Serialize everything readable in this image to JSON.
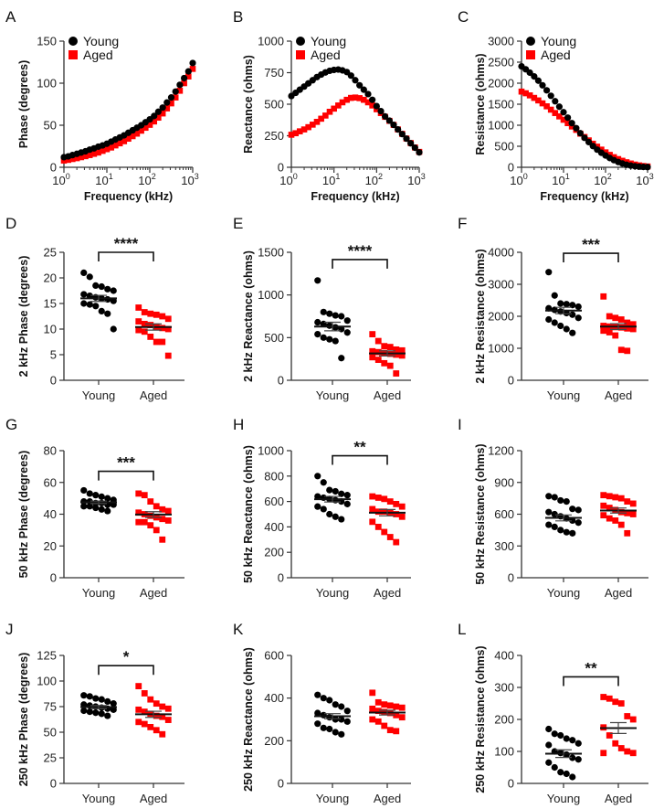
{
  "colors": {
    "young": "#000000",
    "aged": "#ff0000"
  },
  "chart_data": [
    {
      "label": "A",
      "type": "line",
      "xscale": "log",
      "xlabel": "Frequency (kHz)",
      "ylabel": "Phase (degrees)",
      "xlim": [
        1,
        1000
      ],
      "ylim": [
        0,
        150
      ],
      "yticks": [
        "0",
        "50",
        "100",
        "150"
      ],
      "xticks": [
        {
          "base": "10",
          "exp": "0"
        },
        {
          "base": "10",
          "exp": "1"
        },
        {
          "base": "10",
          "exp": "2"
        },
        {
          "base": "10",
          "exp": "3"
        }
      ],
      "legend": [
        "Young",
        "Aged"
      ],
      "legend_position": "top-left",
      "x": [
        1,
        1.26,
        1.58,
        2,
        2.51,
        3.16,
        3.98,
        5.01,
        6.31,
        7.94,
        10,
        12.6,
        15.8,
        20,
        25.1,
        31.6,
        39.8,
        50.1,
        63.1,
        79.4,
        100,
        126,
        158,
        200,
        251,
        316,
        398,
        501,
        631,
        794,
        1000
      ],
      "series": [
        {
          "name": "Young",
          "marker": "circle",
          "values": [
            12,
            13,
            14.5,
            16,
            17.5,
            19,
            21,
            22.5,
            24.5,
            26,
            28,
            30.5,
            33,
            35.5,
            38,
            41,
            44,
            47,
            50,
            53.5,
            57,
            61,
            66,
            71,
            77,
            83,
            90,
            98,
            106,
            114,
            124
          ]
        },
        {
          "name": "Aged",
          "marker": "square",
          "values": [
            8,
            8.8,
            9.8,
            10.8,
            12,
            13.2,
            14.5,
            16,
            17.5,
            19.5,
            21.5,
            23.5,
            26,
            28.5,
            31,
            34,
            37,
            40,
            43.5,
            47,
            50.5,
            54.5,
            59,
            64,
            70,
            76,
            83,
            91,
            100,
            108,
            117
          ]
        }
      ]
    },
    {
      "label": "B",
      "type": "line",
      "xscale": "log",
      "xlabel": "Frequency (kHz)",
      "ylabel": "Reactance (ohms)",
      "xlim": [
        1,
        1000
      ],
      "ylim": [
        0,
        1000
      ],
      "yticks": [
        "0",
        "250",
        "500",
        "750",
        "1000"
      ],
      "xticks": [
        {
          "base": "10",
          "exp": "0"
        },
        {
          "base": "10",
          "exp": "1"
        },
        {
          "base": "10",
          "exp": "2"
        },
        {
          "base": "10",
          "exp": "3"
        }
      ],
      "legend": [
        "Young",
        "Aged"
      ],
      "legend_position": "top-left",
      "x": [
        1,
        1.26,
        1.58,
        2,
        2.51,
        3.16,
        3.98,
        5.01,
        6.31,
        7.94,
        10,
        12.6,
        15.8,
        20,
        25.1,
        31.6,
        39.8,
        50.1,
        63.1,
        79.4,
        100,
        126,
        158,
        200,
        251,
        316,
        398,
        501,
        631,
        794,
        1000
      ],
      "series": [
        {
          "name": "Young",
          "marker": "circle",
          "values": [
            565,
            590,
            615,
            640,
            665,
            690,
            715,
            735,
            752,
            765,
            772,
            775,
            768,
            755,
            727,
            690,
            650,
            615,
            580,
            535,
            485,
            445,
            403,
            370,
            336,
            300,
            263,
            227,
            190,
            155,
            118
          ]
        },
        {
          "name": "Aged",
          "marker": "square",
          "values": [
            258,
            270,
            285,
            300,
            318,
            338,
            360,
            385,
            410,
            440,
            465,
            490,
            515,
            535,
            550,
            553,
            548,
            535,
            515,
            490,
            460,
            430,
            400,
            368,
            336,
            300,
            265,
            228,
            192,
            157,
            122
          ]
        }
      ]
    },
    {
      "label": "C",
      "type": "line",
      "xscale": "log",
      "xlabel": "Frequency (kHz)",
      "ylabel": "Resistance (ohms)",
      "xlim": [
        1,
        1000
      ],
      "ylim": [
        0,
        3000
      ],
      "yticks": [
        "0",
        "500",
        "1000",
        "1500",
        "2000",
        "2500",
        "3000"
      ],
      "xticks": [
        {
          "base": "10",
          "exp": "0"
        },
        {
          "base": "10",
          "exp": "1"
        },
        {
          "base": "10",
          "exp": "2"
        },
        {
          "base": "10",
          "exp": "3"
        }
      ],
      "legend": [
        "Young",
        "Aged"
      ],
      "legend_position": "top-left",
      "x": [
        1,
        1.26,
        1.58,
        2,
        2.51,
        3.16,
        3.98,
        5.01,
        6.31,
        7.94,
        10,
        12.6,
        15.8,
        20,
        25.1,
        31.6,
        39.8,
        50.1,
        63.1,
        79.4,
        100,
        126,
        158,
        200,
        251,
        316,
        398,
        501,
        631,
        794,
        1000
      ],
      "series": [
        {
          "name": "Young",
          "marker": "circle",
          "values": [
            2400,
            2330,
            2250,
            2160,
            2060,
            1950,
            1830,
            1700,
            1570,
            1440,
            1310,
            1180,
            1050,
            930,
            810,
            700,
            600,
            505,
            420,
            345,
            280,
            220,
            170,
            125,
            90,
            60,
            40,
            25,
            15,
            8,
            5
          ]
        },
        {
          "name": "Aged",
          "marker": "square",
          "values": [
            1800,
            1760,
            1710,
            1650,
            1590,
            1520,
            1450,
            1370,
            1290,
            1210,
            1130,
            1050,
            970,
            890,
            800,
            720,
            640,
            560,
            490,
            420,
            355,
            295,
            240,
            195,
            155,
            120,
            90,
            65,
            45,
            30,
            20
          ]
        }
      ]
    },
    {
      "label": "D",
      "type": "scatter",
      "categories": [
        "Young",
        "Aged"
      ],
      "ylabel": "2 kHz Phase (degrees)",
      "ylim": [
        0,
        25
      ],
      "yticks": [
        "0",
        "5",
        "10",
        "15",
        "20",
        "25"
      ],
      "groups": [
        {
          "name": "Young",
          "values": [
            21,
            20.2,
            18.5,
            18.3,
            17.8,
            17.5,
            16.8,
            16.5,
            16.2,
            16,
            15.8,
            15.5,
            15,
            14.8,
            14.5,
            13.5,
            13,
            10
          ],
          "mean": 16.0,
          "sem": 0.6
        },
        {
          "name": "Aged",
          "values": [
            14.2,
            13.3,
            13,
            12.8,
            12.5,
            12,
            11.5,
            11,
            10.8,
            10.5,
            10.2,
            10,
            9.8,
            9.5,
            8.5,
            7.5,
            7.5,
            4.8
          ],
          "mean": 10.4,
          "sem": 0.6
        }
      ],
      "significance": {
        "label": "****",
        "bracket_y": 25
      }
    },
    {
      "label": "E",
      "type": "scatter",
      "categories": [
        "Young",
        "Aged"
      ],
      "ylabel": "2 kHz Reactance (ohms)",
      "ylim": [
        0,
        1500
      ],
      "yticks": [
        "0",
        "500",
        "1000",
        "1500"
      ],
      "groups": [
        {
          "name": "Young",
          "values": [
            1170,
            800,
            780,
            760,
            750,
            700,
            680,
            660,
            640,
            620,
            600,
            560,
            540,
            500,
            480,
            460,
            260
          ],
          "mean": 630,
          "sem": 50
        },
        {
          "name": "Aged",
          "values": [
            540,
            460,
            400,
            390,
            360,
            350,
            340,
            330,
            320,
            310,
            300,
            290,
            270,
            240,
            200,
            170,
            80
          ],
          "mean": 315,
          "sem": 30
        }
      ],
      "significance": {
        "label": "****",
        "bracket_y": 1415
      }
    },
    {
      "label": "F",
      "type": "scatter",
      "categories": [
        "Young",
        "Aged"
      ],
      "ylabel": "2 kHz Resistance (ohms)",
      "ylim": [
        0,
        4000
      ],
      "yticks": [
        "0",
        "1000",
        "2000",
        "3000",
        "4000"
      ],
      "groups": [
        {
          "name": "Young",
          "values": [
            3380,
            2650,
            2400,
            2380,
            2350,
            2300,
            2250,
            2200,
            2150,
            2100,
            2050,
            1950,
            1900,
            1800,
            1700,
            1600,
            1480
          ],
          "mean": 2180,
          "sem": 100
        },
        {
          "name": "Aged",
          "values": [
            2620,
            2000,
            1950,
            1900,
            1800,
            1750,
            1700,
            1680,
            1660,
            1650,
            1620,
            1600,
            1550,
            1500,
            1400,
            950,
            920
          ],
          "mean": 1680,
          "sem": 90
        }
      ],
      "significance": {
        "label": "***",
        "bracket_y": 3970
      }
    },
    {
      "label": "G",
      "type": "scatter",
      "categories": [
        "Young",
        "Aged"
      ],
      "ylabel": "50 kHz Phase (degrees)",
      "ylim": [
        0,
        80
      ],
      "yticks": [
        "0",
        "20",
        "40",
        "60",
        "80"
      ],
      "groups": [
        {
          "name": "Young",
          "values": [
            55,
            53,
            52,
            51,
            50,
            49,
            48,
            48,
            47,
            47,
            46,
            46,
            45,
            45,
            44,
            43,
            42
          ],
          "mean": 47.5,
          "sem": 0.8
        },
        {
          "name": "Aged",
          "values": [
            53,
            52,
            48,
            45,
            43,
            42,
            41,
            40,
            39,
            38,
            37,
            36,
            35,
            35,
            33,
            30,
            24
          ],
          "mean": 39.8,
          "sem": 1.8
        }
      ],
      "significance": {
        "label": "***",
        "bracket_y": 67
      }
    },
    {
      "label": "H",
      "type": "scatter",
      "categories": [
        "Young",
        "Aged"
      ],
      "ylabel": "50 kHz Reactance (ohms)",
      "ylim": [
        0,
        1000
      ],
      "yticks": [
        "0",
        "200",
        "400",
        "600",
        "800",
        "1000"
      ],
      "groups": [
        {
          "name": "Young",
          "values": [
            800,
            750,
            690,
            680,
            660,
            650,
            640,
            630,
            620,
            610,
            600,
            580,
            560,
            540,
            500,
            480,
            460
          ],
          "mean": 618,
          "sem": 22
        },
        {
          "name": "Aged",
          "values": [
            640,
            630,
            620,
            600,
            580,
            560,
            540,
            520,
            520,
            510,
            500,
            480,
            440,
            400,
            360,
            320,
            280
          ],
          "mean": 512,
          "sem": 25
        }
      ],
      "significance": {
        "label": "**",
        "bracket_y": 960
      }
    },
    {
      "label": "I",
      "type": "scatter",
      "categories": [
        "Young",
        "Aged"
      ],
      "ylabel": "50 kHz Resistance (ohms)",
      "ylim": [
        0,
        1200
      ],
      "yticks": [
        "0",
        "300",
        "600",
        "900",
        "1200"
      ],
      "groups": [
        {
          "name": "Young",
          "values": [
            770,
            760,
            730,
            720,
            650,
            640,
            620,
            600,
            580,
            560,
            540,
            520,
            500,
            480,
            450,
            430,
            420
          ],
          "mean": 565,
          "sem": 28
        },
        {
          "name": "Aged",
          "values": [
            780,
            770,
            760,
            750,
            720,
            700,
            680,
            660,
            640,
            620,
            610,
            600,
            590,
            560,
            540,
            500,
            420
          ],
          "mean": 635,
          "sem": 24
        }
      ],
      "significance": null
    },
    {
      "label": "J",
      "type": "scatter",
      "categories": [
        "Young",
        "Aged"
      ],
      "ylabel": "250 kHz Phase (degrees)",
      "ylim": [
        0,
        125
      ],
      "yticks": [
        "0",
        "25",
        "50",
        "75",
        "100",
        "125"
      ],
      "groups": [
        {
          "name": "Young",
          "values": [
            86,
            85,
            83,
            82,
            80,
            78,
            77,
            76,
            75,
            74,
            73,
            72,
            71,
            70,
            69,
            68,
            66
          ],
          "mean": 74.5,
          "sem": 1.5
        },
        {
          "name": "Aged",
          "values": [
            95,
            88,
            82,
            78,
            75,
            73,
            72,
            70,
            68,
            66,
            65,
            62,
            60,
            58,
            55,
            52,
            48
          ],
          "mean": 67.5,
          "sem": 3
        }
      ],
      "significance": {
        "label": "*",
        "bracket_y": 115
      }
    },
    {
      "label": "K",
      "type": "scatter",
      "categories": [
        "Young",
        "Aged"
      ],
      "ylabel": "250 kHz Reactance (ohms)",
      "ylim": [
        0,
        600
      ],
      "yticks": [
        "0",
        "200",
        "400",
        "600"
      ],
      "groups": [
        {
          "name": "Young",
          "values": [
            415,
            400,
            390,
            370,
            360,
            340,
            330,
            320,
            310,
            300,
            300,
            290,
            280,
            260,
            255,
            240,
            230
          ],
          "mean": 315,
          "sem": 12
        },
        {
          "name": "Aged",
          "values": [
            425,
            380,
            370,
            365,
            360,
            355,
            350,
            340,
            335,
            330,
            320,
            310,
            300,
            290,
            270,
            250,
            245
          ],
          "mean": 332,
          "sem": 11
        }
      ],
      "significance": null
    },
    {
      "label": "L",
      "type": "scatter",
      "categories": [
        "Young",
        "Aged"
      ],
      "ylabel": "250 kHz Resistance (ohms)",
      "ylim": [
        0,
        400
      ],
      "yticks": [
        "0",
        "100",
        "200",
        "300",
        "400"
      ],
      "groups": [
        {
          "name": "Young",
          "values": [
            170,
            155,
            150,
            140,
            135,
            125,
            120,
            100,
            95,
            90,
            80,
            75,
            65,
            50,
            35,
            30,
            20
          ],
          "mean": 93,
          "sem": 12
        },
        {
          "name": "Aged",
          "values": [
            270,
            265,
            255,
            250,
            210,
            200,
            175,
            150,
            125,
            110,
            100,
            95,
            95
          ],
          "mean": 173,
          "sem": 17
        }
      ],
      "significance": {
        "label": "**",
        "bracket_y": 333
      }
    }
  ]
}
